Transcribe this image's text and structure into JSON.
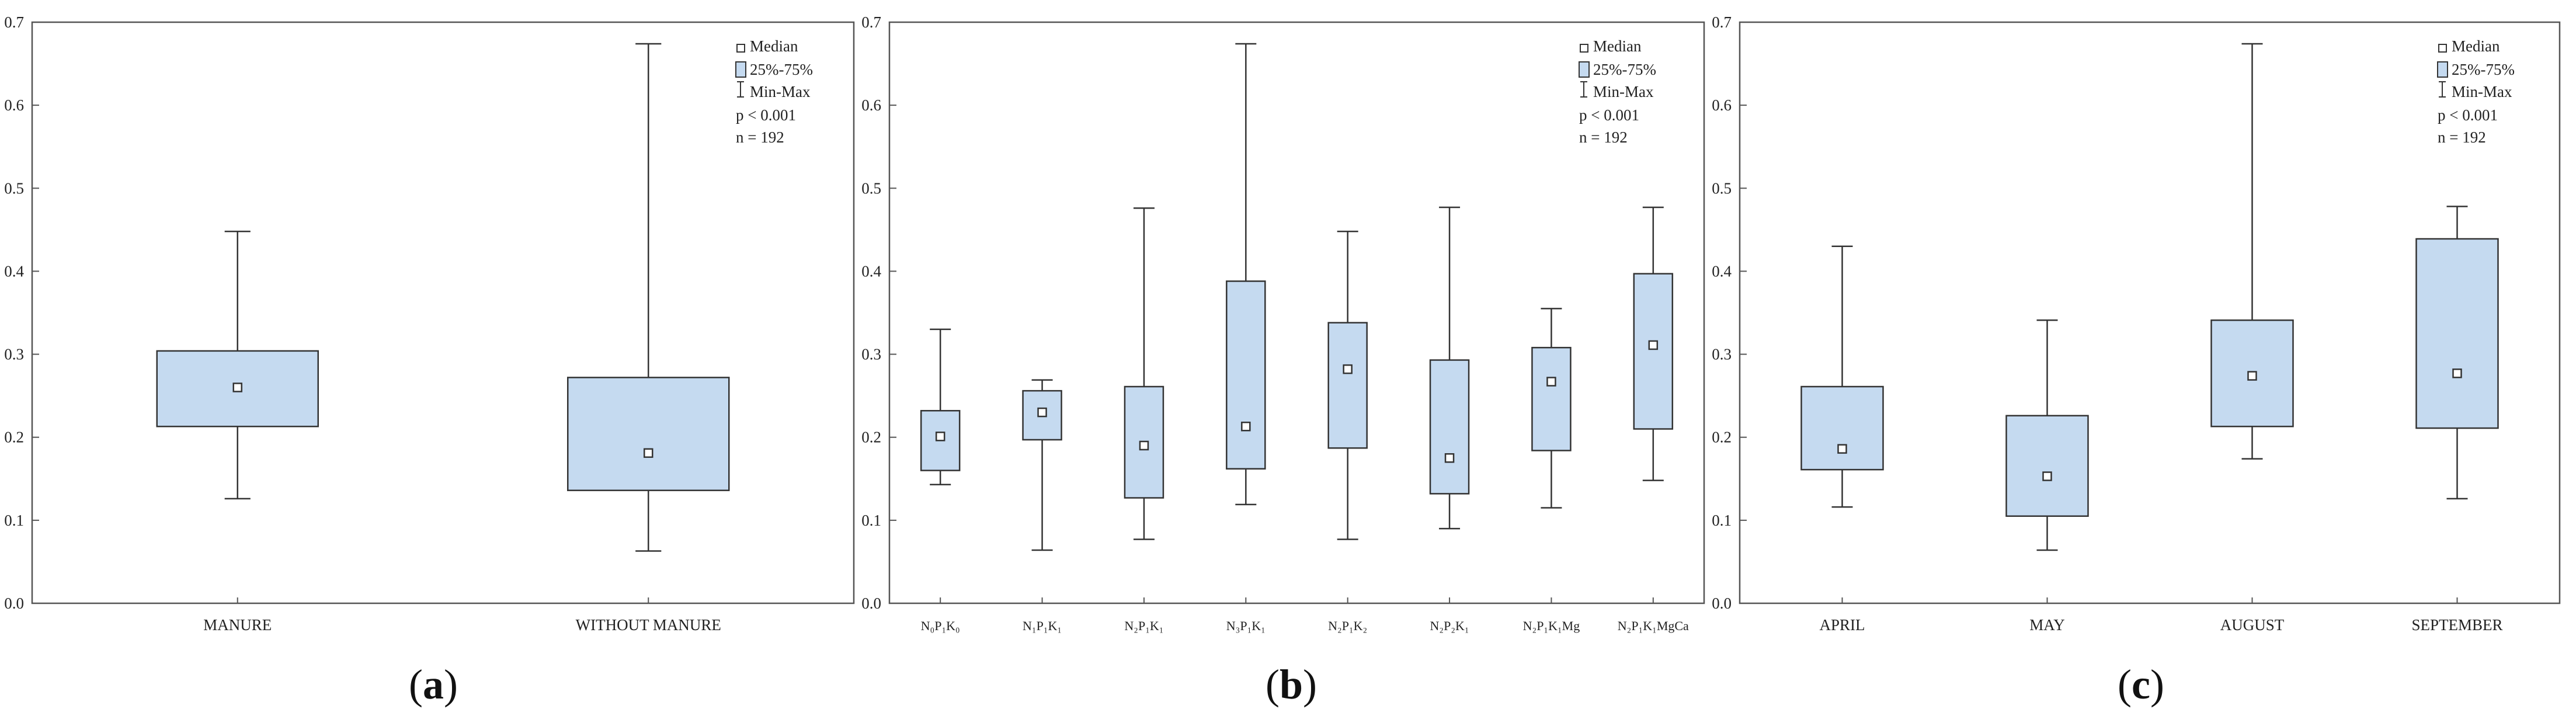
{
  "colors": {
    "box_fill": "#c5daf0",
    "box_stroke": "#333333",
    "axis": "#555555",
    "text": "#222222"
  },
  "chart_data": [
    {
      "type": "box",
      "panel_label": "(a)",
      "ylim": [
        0,
        0.7
      ],
      "yticks": [
        "0.0",
        "0.1",
        "0.2",
        "0.3",
        "0.4",
        "0.5",
        "0.6",
        "0.7"
      ],
      "legend": {
        "median": "Median",
        "iqr": "25%-75%",
        "range": "Min-Max",
        "p": "p < 0.001",
        "n": "n = 192"
      },
      "categories": [
        {
          "label": "MANURE",
          "min": 0.126,
          "q1": 0.213,
          "median": 0.26,
          "q3": 0.304,
          "max": 0.448
        },
        {
          "label": "WITHOUT MANURE",
          "min": 0.063,
          "q1": 0.136,
          "median": 0.181,
          "q3": 0.272,
          "max": 0.674
        }
      ]
    },
    {
      "type": "box",
      "panel_label": "(b)",
      "ylim": [
        0,
        0.7
      ],
      "yticks": [
        "0.0",
        "0.1",
        "0.2",
        "0.3",
        "0.4",
        "0.5",
        "0.6",
        "0.7"
      ],
      "legend": {
        "median": "Median",
        "iqr": "25%-75%",
        "range": "Min-Max",
        "p": "p < 0.001",
        "n": "n = 192"
      },
      "categories": [
        {
          "label": "N₀P₁K₀",
          "min": 0.143,
          "q1": 0.16,
          "median": 0.201,
          "q3": 0.232,
          "max": 0.33
        },
        {
          "label": "N₁P₁K₁",
          "min": 0.064,
          "q1": 0.197,
          "median": 0.23,
          "q3": 0.256,
          "max": 0.269
        },
        {
          "label": "N₂P₁K₁",
          "min": 0.077,
          "q1": 0.127,
          "median": 0.19,
          "q3": 0.261,
          "max": 0.476
        },
        {
          "label": "N₃P₁K₁",
          "min": 0.119,
          "q1": 0.162,
          "median": 0.213,
          "q3": 0.388,
          "max": 0.674
        },
        {
          "label": "N₂P₁K₂",
          "min": 0.077,
          "q1": 0.187,
          "median": 0.282,
          "q3": 0.338,
          "max": 0.448
        },
        {
          "label": "N₂P₂K₁",
          "min": 0.09,
          "q1": 0.132,
          "median": 0.175,
          "q3": 0.293,
          "max": 0.477
        },
        {
          "label": "N₂P₁K₁Mg",
          "min": 0.115,
          "q1": 0.184,
          "median": 0.267,
          "q3": 0.308,
          "max": 0.355
        },
        {
          "label": "N₂P₁K₁MgCa",
          "min": 0.148,
          "q1": 0.21,
          "median": 0.311,
          "q3": 0.397,
          "max": 0.477
        }
      ]
    },
    {
      "type": "box",
      "panel_label": "(c)",
      "ylim": [
        0,
        0.7
      ],
      "yticks": [
        "0.0",
        "0.1",
        "0.2",
        "0.3",
        "0.4",
        "0.5",
        "0.6",
        "0.7"
      ],
      "legend": {
        "median": "Median",
        "iqr": "25%-75%",
        "range": "Min-Max",
        "p": "p < 0.001",
        "n": "n = 192"
      },
      "categories": [
        {
          "label": "APRIL",
          "min": 0.116,
          "q1": 0.161,
          "median": 0.186,
          "q3": 0.261,
          "max": 0.43
        },
        {
          "label": "MAY",
          "min": 0.064,
          "q1": 0.105,
          "median": 0.153,
          "q3": 0.226,
          "max": 0.341
        },
        {
          "label": "AUGUST",
          "min": 0.174,
          "q1": 0.213,
          "median": 0.274,
          "q3": 0.341,
          "max": 0.674
        },
        {
          "label": "SEPTEMBER",
          "min": 0.126,
          "q1": 0.211,
          "median": 0.277,
          "q3": 0.439,
          "max": 0.478
        }
      ]
    }
  ]
}
